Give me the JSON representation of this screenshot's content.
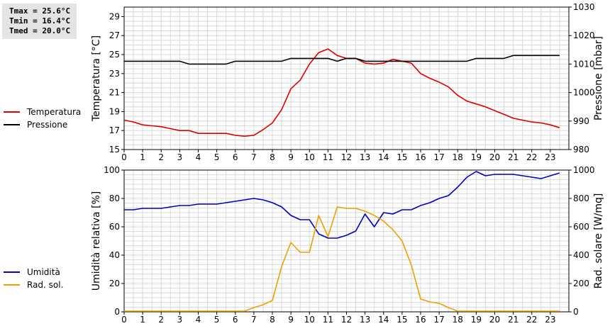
{
  "stats": {
    "tmax": "Tmax = 25.6°C",
    "tmin": "Tmin = 16.4°C",
    "tmed": "Tmed = 20.0°C"
  },
  "chart_data": [
    {
      "type": "line",
      "x_ticks": [
        0,
        1,
        2,
        3,
        4,
        5,
        6,
        7,
        8,
        9,
        10,
        11,
        12,
        13,
        14,
        15,
        16,
        17,
        18,
        19,
        20,
        21,
        22,
        23
      ],
      "ylabel": "Temperatura [°C]",
      "ylim": [
        15,
        30
      ],
      "y_ticks": [
        15,
        17,
        19,
        21,
        23,
        25,
        27,
        29
      ],
      "y2label": "Pressione [mbar]",
      "y2lim": [
        980,
        1030
      ],
      "y2_ticks": [
        980,
        990,
        1000,
        1010,
        1020,
        1030
      ],
      "grid": true,
      "legend_position": "left",
      "series": [
        {
          "name": "Temperatura",
          "axis": "left",
          "color": "#dd0000",
          "x": [
            0,
            0.5,
            1,
            1.5,
            2,
            2.5,
            3,
            3.5,
            4,
            4.5,
            5,
            5.5,
            6,
            6.5,
            7,
            7.5,
            8,
            8.5,
            9,
            9.5,
            10,
            10.5,
            11,
            11.5,
            12,
            12.5,
            13,
            13.5,
            14,
            14.5,
            15,
            15.5,
            16,
            16.5,
            17,
            17.5,
            18,
            18.5,
            19,
            19.5,
            20,
            20.5,
            21,
            21.5,
            22,
            22.5,
            23,
            23.5
          ],
          "y": [
            18.1,
            17.9,
            17.6,
            17.5,
            17.4,
            17.2,
            17.0,
            17.0,
            16.7,
            16.7,
            16.7,
            16.7,
            16.5,
            16.4,
            16.5,
            17.1,
            17.8,
            19.2,
            21.4,
            22.3,
            24.0,
            25.2,
            25.6,
            24.9,
            24.6,
            24.6,
            24.1,
            24.0,
            24.1,
            24.5,
            24.3,
            24.1,
            23.0,
            22.5,
            22.1,
            21.6,
            20.7,
            20.1,
            19.8,
            19.5,
            19.1,
            18.7,
            18.3,
            18.1,
            17.9,
            17.8,
            17.6,
            17.3
          ]
        },
        {
          "name": "Pressione",
          "axis": "right",
          "color": "#000000",
          "x": [
            0,
            0.5,
            1,
            1.5,
            2,
            2.5,
            3,
            3.5,
            4,
            4.5,
            5,
            5.5,
            6,
            6.5,
            7,
            7.5,
            8,
            8.5,
            9,
            9.5,
            10,
            10.5,
            11,
            11.5,
            12,
            12.5,
            13,
            13.5,
            14,
            14.5,
            15,
            15.5,
            16,
            16.5,
            17,
            17.5,
            18,
            18.5,
            19,
            19.5,
            20,
            20.5,
            21,
            21.5,
            22,
            22.5,
            23,
            23.5
          ],
          "y": [
            1011,
            1011,
            1011,
            1011,
            1011,
            1011,
            1011,
            1010,
            1010,
            1010,
            1010,
            1010,
            1011,
            1011,
            1011,
            1011,
            1011,
            1011,
            1012,
            1012,
            1012,
            1012,
            1012,
            1011,
            1012,
            1012,
            1011,
            1011,
            1011,
            1011,
            1011,
            1011,
            1011,
            1011,
            1011,
            1011,
            1011,
            1011,
            1012,
            1012,
            1012,
            1012,
            1013,
            1013,
            1013,
            1013,
            1013,
            1013
          ]
        }
      ]
    },
    {
      "type": "line",
      "x_ticks": [
        0,
        1,
        2,
        3,
        4,
        5,
        6,
        7,
        8,
        9,
        10,
        11,
        12,
        13,
        14,
        15,
        16,
        17,
        18,
        19,
        20,
        21,
        22,
        23
      ],
      "ylabel": "Umidità relativa [%]",
      "ylim": [
        0,
        100
      ],
      "y_ticks": [
        0,
        20,
        40,
        60,
        80,
        100
      ],
      "y2label": "Rad. solare [W/mq]",
      "y2lim": [
        0,
        1000
      ],
      "y2_ticks": [
        0,
        200,
        400,
        600,
        800,
        1000
      ],
      "grid": true,
      "legend_position": "left",
      "series": [
        {
          "name": "Umidità",
          "axis": "left",
          "color": "#0000bb",
          "x": [
            0,
            0.5,
            1,
            1.5,
            2,
            2.5,
            3,
            3.5,
            4,
            4.5,
            5,
            5.5,
            6,
            6.5,
            7,
            7.5,
            8,
            8.5,
            9,
            9.5,
            10,
            10.5,
            11,
            11.5,
            12,
            12.5,
            13,
            13.5,
            14,
            14.5,
            15,
            15.5,
            16,
            16.5,
            17,
            17.5,
            18,
            18.5,
            19,
            19.5,
            20,
            20.5,
            21,
            21.5,
            22,
            22.5,
            23,
            23.5
          ],
          "y": [
            72,
            72,
            73,
            73,
            73,
            74,
            75,
            75,
            76,
            76,
            76,
            77,
            78,
            79,
            80,
            79,
            77,
            74,
            68,
            65,
            65,
            55,
            52,
            52,
            54,
            57,
            69,
            60,
            70,
            69,
            72,
            72,
            75,
            77,
            80,
            82,
            88,
            95,
            99,
            96,
            97,
            97,
            97,
            96,
            95,
            94,
            96,
            98
          ]
        },
        {
          "name": "Rad. sol.",
          "axis": "right",
          "color": "#eea000",
          "x": [
            0,
            0.5,
            1,
            1.5,
            2,
            2.5,
            3,
            3.5,
            4,
            4.5,
            5,
            5.5,
            6,
            6.5,
            7,
            7.5,
            8,
            8.5,
            9,
            9.5,
            10,
            10.5,
            11,
            11.5,
            12,
            12.5,
            13,
            13.5,
            14,
            14.5,
            15,
            15.5,
            16,
            16.5,
            17,
            17.5,
            18,
            18.5,
            19,
            19.5,
            20,
            20.5,
            21,
            21.5,
            22,
            22.5,
            23,
            23.5
          ],
          "y": [
            5,
            5,
            5,
            5,
            5,
            5,
            5,
            5,
            5,
            5,
            5,
            5,
            5,
            5,
            30,
            50,
            80,
            320,
            490,
            420,
            420,
            680,
            530,
            740,
            730,
            730,
            710,
            680,
            640,
            580,
            500,
            330,
            90,
            70,
            60,
            30,
            5,
            5,
            5,
            5,
            5,
            5,
            5,
            5,
            5,
            5,
            5,
            5
          ]
        }
      ]
    }
  ]
}
